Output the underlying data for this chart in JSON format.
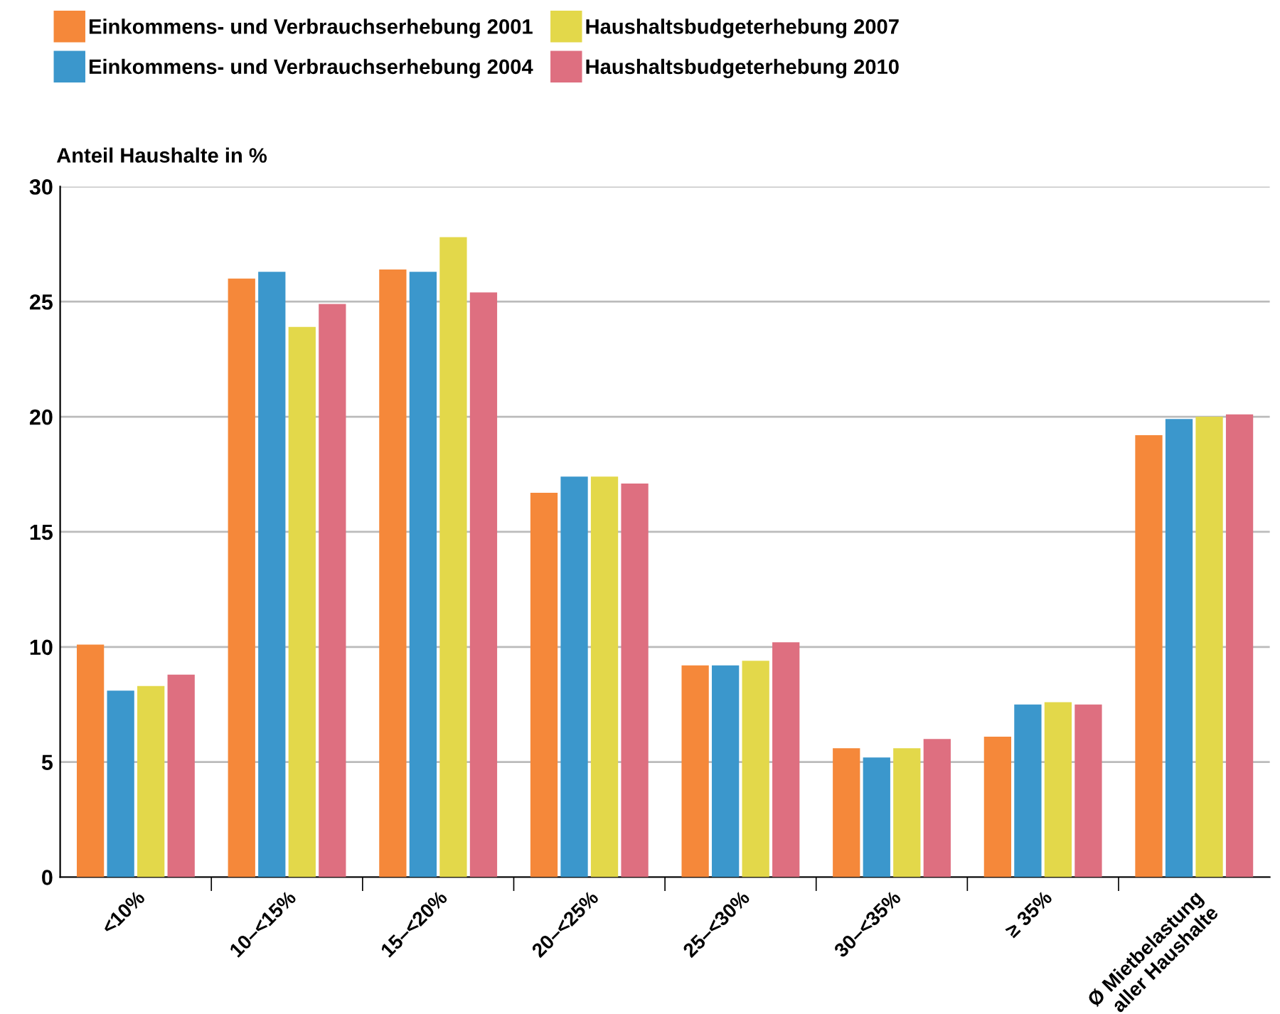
{
  "chart_data": {
    "type": "bar",
    "ylabel": "Anteil Haushalte in %",
    "categories": [
      "<10%",
      "10–<15%",
      "15–<20%",
      "20–<25%",
      "25–<30%",
      "30–<35%",
      "≥ 35%",
      "Ø Mietbelastung\naller Haushalte"
    ],
    "series": [
      {
        "name": "Einkommens- und Verbrauchserhebung 2001",
        "color": "#f5883a",
        "values": [
          10.1,
          26.0,
          26.4,
          16.7,
          9.2,
          5.6,
          6.1,
          19.2
        ]
      },
      {
        "name": "Einkommens- und Verbrauchserhebung 2004",
        "color": "#3b97cc",
        "values": [
          8.1,
          26.3,
          26.3,
          17.4,
          9.2,
          5.2,
          7.5,
          19.9
        ]
      },
      {
        "name": "Haushaltsbudgeterhebung 2007",
        "color": "#e3d84a",
        "values": [
          8.3,
          23.9,
          27.8,
          17.4,
          9.4,
          5.6,
          7.6,
          20.0
        ]
      },
      {
        "name": "Haushaltsbudgeterhebung 2010",
        "color": "#de6f80",
        "values": [
          8.8,
          24.9,
          25.4,
          17.1,
          10.2,
          6.0,
          7.5,
          20.1
        ]
      }
    ],
    "ylim": [
      0,
      30
    ],
    "yticks": [
      0,
      5,
      10,
      15,
      20,
      25,
      30
    ],
    "grid": "y",
    "legend": "top"
  }
}
